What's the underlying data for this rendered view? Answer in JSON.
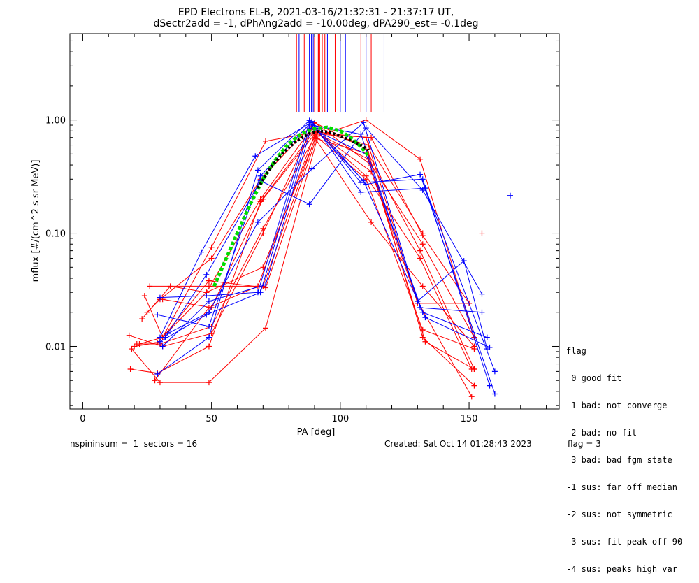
{
  "title_line1": "EPD Electrons EL-B, 2021-03-16/21:32:31 - 21:37:17 UT,",
  "title_line2": "dSectr2add = -1, dPhAng2add = -10.00deg, dPA290_est=  -0.1deg",
  "footer": {
    "left": "nspininsum =  1  sectors = 16",
    "created": "Created: Sat Oct 14 01:28:43 2023",
    "flag": "flag = 3"
  },
  "legend": {
    "title": "flag",
    "items": [
      " 0 good fit",
      " 1 bad: not converge",
      " 2 bad: no fit",
      " 3 bad: bad fgm state",
      "-1 sus: far off median",
      "-2 sus: not symmetric",
      "-3 sus: fit peak off 90",
      "-4 sus: peaks high var"
    ]
  },
  "colors": {
    "red": "#ff0000",
    "blue": "#0000ff",
    "green": "#00dd00",
    "black": "#000000"
  },
  "chart_data": {
    "type": "line",
    "xlabel": "PA [deg]",
    "ylabel": "mflux [#/(cm^2 s sr MeV)]",
    "xlim": [
      -5,
      185
    ],
    "ylim": [
      0.0028,
      5.8
    ],
    "yscale": "log",
    "xticks": [
      0,
      50,
      100,
      150
    ],
    "yticks": [
      {
        "v": 0.01,
        "label": "0.01"
      },
      {
        "v": 0.1,
        "label": "0.10"
      },
      {
        "v": 1.0,
        "label": "1.00"
      }
    ],
    "vlines_red": [
      83,
      86,
      90,
      91,
      91.5,
      92,
      93,
      94,
      98,
      108,
      112
    ],
    "vlines_blue": [
      84,
      88,
      88.8,
      89.5,
      95,
      100,
      102,
      110,
      117
    ],
    "series": [
      {
        "color": "red",
        "points": [
          [
            18,
            0.0125
          ],
          [
            31,
            0.01
          ],
          [
            50,
            0.013
          ],
          [
            70,
            0.1
          ],
          [
            90,
            0.95
          ],
          [
            110,
            0.55
          ],
          [
            131,
            0.07
          ],
          [
            152,
            0.0063
          ]
        ]
      },
      {
        "color": "red",
        "points": [
          [
            18.5,
            0.0063
          ],
          [
            29,
            0.0058
          ],
          [
            49,
            0.01
          ],
          [
            69,
            0.19
          ],
          [
            90,
            0.8
          ],
          [
            112,
            0.35
          ],
          [
            130,
            0.025
          ],
          [
            151,
            0.0036
          ]
        ]
      },
      {
        "color": "red",
        "points": [
          [
            19,
            0.0095
          ],
          [
            30,
            0.0048
          ],
          [
            49,
            0.0048
          ],
          [
            71,
            0.0145
          ],
          [
            91,
            0.68
          ],
          [
            111,
            0.5
          ],
          [
            132,
            0.012
          ],
          [
            152,
            0.0045
          ]
        ]
      },
      {
        "color": "red",
        "points": [
          [
            20,
            0.01
          ],
          [
            29,
            0.0108
          ],
          [
            48,
            0.03
          ],
          [
            69,
            0.2
          ],
          [
            89,
            0.85
          ],
          [
            110,
            0.32
          ],
          [
            131,
            0.06
          ],
          [
            151,
            0.0063
          ]
        ]
      },
      {
        "color": "red",
        "points": [
          [
            23,
            0.0175
          ],
          [
            34,
            0.034
          ],
          [
            48,
            0.03
          ],
          [
            70,
            0.05
          ],
          [
            91,
            0.75
          ],
          [
            112,
            0.7
          ],
          [
            132,
            0.095
          ],
          [
            150,
            0.024
          ]
        ]
      },
      {
        "color": "red",
        "points": [
          [
            24,
            0.028
          ],
          [
            31,
            0.012
          ],
          [
            50,
            0.075
          ],
          [
            71,
            0.65
          ],
          [
            90,
            0.78
          ],
          [
            111,
            0.45
          ],
          [
            133,
            0.011
          ],
          [
            152,
            0.0063
          ]
        ]
      },
      {
        "color": "red",
        "points": [
          [
            25,
            0.02
          ],
          [
            30,
            0.026
          ],
          [
            50,
            0.06
          ],
          [
            69,
            0.3
          ],
          [
            90,
            0.95
          ],
          [
            112,
            0.4
          ],
          [
            132,
            0.08
          ],
          [
            152,
            0.012
          ]
        ]
      },
      {
        "color": "red",
        "points": [
          [
            26,
            0.034
          ],
          [
            49,
            0.034
          ],
          [
            70,
            0.034
          ],
          [
            91,
            0.78
          ],
          [
            110,
            0.7
          ],
          [
            130,
            0.024
          ],
          [
            150,
            0.024
          ]
        ]
      },
      {
        "color": "red",
        "points": [
          [
            21,
            0.0105
          ],
          [
            30,
            0.0105
          ],
          [
            50,
            0.015
          ],
          [
            70,
            0.11
          ],
          [
            90,
            0.7
          ],
          [
            112,
            0.125
          ],
          [
            132,
            0.034
          ],
          [
            152,
            0.01
          ]
        ]
      },
      {
        "color": "red",
        "points": [
          [
            22,
            0.0105
          ],
          [
            31,
            0.012
          ],
          [
            49,
            0.038
          ],
          [
            71,
            0.033
          ],
          [
            91,
            0.72
          ],
          [
            110,
            1.0
          ],
          [
            131,
            0.45
          ],
          [
            152,
            0.012
          ]
        ]
      },
      {
        "color": "red",
        "points": [
          [
            31,
            0.026
          ],
          [
            50,
            0.022
          ],
          [
            70,
            0.2
          ],
          [
            91,
            0.8
          ],
          [
            111,
            0.6
          ],
          [
            132,
            0.1
          ],
          [
            155,
            0.1
          ]
        ]
      },
      {
        "color": "red",
        "points": [
          [
            28,
            0.005
          ],
          [
            49,
            0.022
          ],
          [
            68,
            0.034
          ],
          [
            90,
            0.74
          ],
          [
            110,
            0.3
          ],
          [
            132,
            0.014
          ],
          [
            152,
            0.0095
          ]
        ]
      },
      {
        "color": "blue",
        "points": [
          [
            29,
            0.0057
          ],
          [
            49,
            0.012
          ],
          [
            68,
            0.36
          ],
          [
            88,
            0.99
          ],
          [
            108,
            0.28
          ],
          [
            132,
            0.3
          ],
          [
            158,
            0.0045
          ]
        ]
      },
      {
        "color": "blue",
        "points": [
          [
            29,
            0.019
          ],
          [
            49,
            0.015
          ],
          [
            69,
            0.32
          ],
          [
            89,
            0.97
          ],
          [
            110,
            0.27
          ],
          [
            131,
            0.33
          ],
          [
            160,
            0.0038
          ]
        ]
      },
      {
        "color": "blue",
        "points": [
          [
            30,
            0.012
          ],
          [
            46,
            0.068
          ],
          [
            67,
            0.48
          ],
          [
            89,
            0.96
          ],
          [
            108,
            0.23
          ],
          [
            133,
            0.25
          ],
          [
            160,
            0.006
          ]
        ]
      },
      {
        "color": "blue",
        "points": [
          [
            30,
            0.027
          ],
          [
            48,
            0.028
          ],
          [
            68,
            0.03
          ],
          [
            88,
            0.95
          ],
          [
            109,
            0.29
          ],
          [
            133,
            0.018
          ],
          [
            158,
            0.0098
          ]
        ]
      },
      {
        "color": "blue",
        "points": [
          [
            32,
            0.012
          ],
          [
            48,
            0.043
          ],
          [
            69,
            0.29
          ],
          [
            88,
            0.18
          ],
          [
            110,
            0.85
          ],
          [
            132,
            0.24
          ],
          [
            155,
            0.029
          ]
        ]
      },
      {
        "color": "blue",
        "points": [
          [
            33,
            0.013
          ],
          [
            49,
            0.02
          ],
          [
            68,
            0.125
          ],
          [
            89,
            0.37
          ],
          [
            109,
            0.95
          ],
          [
            130,
            0.025
          ],
          [
            148,
            0.057
          ],
          [
            157,
            0.0095
          ]
        ]
      },
      {
        "color": "blue",
        "points": [
          [
            30,
            0.011
          ],
          [
            48,
            0.019
          ],
          [
            69,
            0.03
          ],
          [
            88,
            0.85
          ],
          [
            110,
            0.5
          ],
          [
            132,
            0.02
          ],
          [
            157,
            0.012
          ]
        ]
      },
      {
        "color": "blue",
        "points": [
          [
            31,
            0.01
          ],
          [
            49,
            0.025
          ],
          [
            71,
            0.035
          ],
          [
            89,
            0.9
          ],
          [
            108,
            0.75
          ],
          [
            131,
            0.022
          ],
          [
            155,
            0.02
          ]
        ]
      }
    ],
    "extra_points": [
      {
        "color": "blue",
        "x": 166,
        "y": 0.215
      }
    ],
    "fits": [
      {
        "color": "green",
        "points": [
          [
            51,
            0.034
          ],
          [
            55,
            0.055
          ],
          [
            60,
            0.1
          ],
          [
            65,
            0.18
          ],
          [
            70,
            0.3
          ],
          [
            75,
            0.45
          ],
          [
            80,
            0.62
          ],
          [
            85,
            0.76
          ],
          [
            90,
            0.84
          ],
          [
            95,
            0.86
          ],
          [
            100,
            0.8
          ],
          [
            104,
            0.7
          ],
          [
            108,
            0.58
          ],
          [
            111,
            0.48
          ]
        ]
      },
      {
        "color": "black",
        "points": [
          [
            68,
            0.25
          ],
          [
            73,
            0.38
          ],
          [
            78,
            0.52
          ],
          [
            83,
            0.65
          ],
          [
            88,
            0.76
          ],
          [
            92,
            0.8
          ],
          [
            96,
            0.78
          ],
          [
            100,
            0.72
          ],
          [
            104,
            0.66
          ],
          [
            108,
            0.6
          ],
          [
            111,
            0.54
          ]
        ]
      }
    ]
  }
}
